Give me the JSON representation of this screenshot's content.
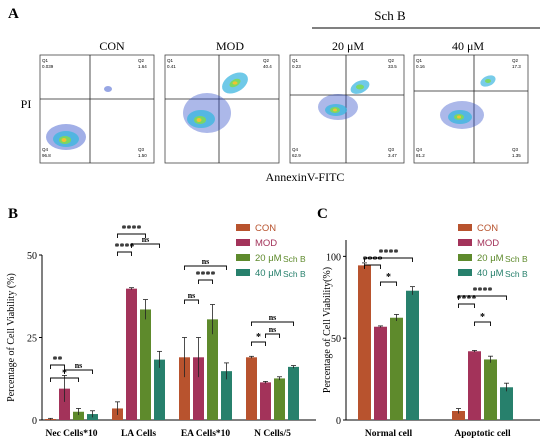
{
  "panel_a": {
    "label": "A",
    "group_label": "Sch B",
    "panels": [
      {
        "title": "CON",
        "q1": "0.039",
        "q2": "1.64",
        "q3": "1.50",
        "q4": "96.8"
      },
      {
        "title": "MOD",
        "q1": "0.41",
        "q2": "40.4",
        "q3": "",
        "q4": ""
      },
      {
        "title": "20 μM",
        "q1": "0.23",
        "q2": "33.5",
        "q3": "3.47",
        "q4": "62.9"
      },
      {
        "title": "40 μM",
        "q1": "0.16",
        "q2": "17.3",
        "q3": "1.35",
        "q4": "81.2"
      }
    ],
    "quadrant_names": [
      "Q1",
      "Q2",
      "Q3",
      "Q4"
    ],
    "ylabel": "PI",
    "xlabel": "AnnexinV-FITC"
  },
  "panel_b": {
    "label": "B"
  },
  "panel_c": {
    "label": "C"
  },
  "significance": {
    "ns": "ns",
    "s1": "*",
    "s2": "**",
    "s4": "****"
  },
  "colors": {
    "CON": "#b8532e",
    "MOD": "#a3335a",
    "SchB20": "#5e8a2c",
    "SchB40": "#27806c"
  },
  "chart_data": [
    {
      "type": "bar",
      "panel": "B",
      "ylabel": "Percentage of Cell Viability (%)",
      "ylim": [
        0,
        50
      ],
      "yticks": [
        "0",
        "25",
        "50"
      ],
      "categories": [
        "Nec Cells*10",
        "LA Cells",
        "EA Cells*10",
        "N Cells/5"
      ],
      "series": [
        {
          "name": "CON",
          "values": [
            0.3,
            3.5,
            19.0,
            19.0
          ],
          "errors": [
            0.2,
            2.0,
            6.0,
            0.3
          ]
        },
        {
          "name": "MOD",
          "values": [
            9.5,
            39.8,
            19.0,
            11.4
          ],
          "errors": [
            4.0,
            0.3,
            6.0,
            0.3
          ]
        },
        {
          "name": "20 μM",
          "suffix": "Sch B",
          "values": [
            2.5,
            33.5,
            30.5,
            12.6
          ],
          "errors": [
            1.0,
            3.0,
            4.5,
            0.5
          ]
        },
        {
          "name": "40 μM",
          "suffix": "Sch B",
          "values": [
            1.8,
            18.3,
            14.8,
            16.1
          ],
          "errors": [
            1.0,
            2.5,
            2.5,
            0.4
          ]
        }
      ],
      "legend": "top-right",
      "grid": false
    },
    {
      "type": "bar",
      "panel": "C",
      "ylabel": "Percentage of Cell Viability(%)",
      "ylim": [
        0,
        110
      ],
      "yticks": [
        "0",
        "50",
        "100"
      ],
      "categories": [
        "Normal cell",
        "Apoptotic cell"
      ],
      "series": [
        {
          "name": "CON",
          "values": [
            94.5,
            5.5
          ],
          "errors": [
            1.5,
            1.5
          ]
        },
        {
          "name": "MOD",
          "values": [
            57.0,
            42.0
          ],
          "errors": [
            0.5,
            0.5
          ]
        },
        {
          "name": "20 μM",
          "suffix": "Sch B",
          "values": [
            62.5,
            37.0
          ],
          "errors": [
            2.0,
            2.0
          ]
        },
        {
          "name": "40 μM",
          "suffix": "Sch B",
          "values": [
            79.0,
            20.0
          ],
          "errors": [
            2.5,
            2.5
          ]
        }
      ],
      "legend": "top-right",
      "grid": false
    }
  ]
}
